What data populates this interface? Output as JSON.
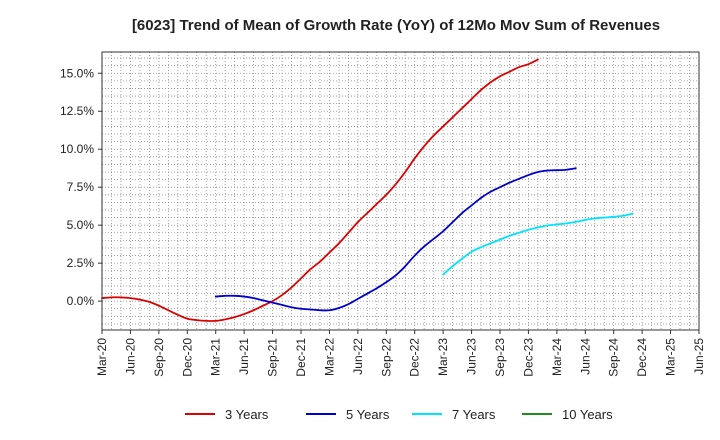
{
  "chart_data": {
    "type": "line",
    "title": "[6023]  Trend of Mean of Growth Rate (YoY) of 12Mo Mov Sum of Revenues",
    "xlabel": "",
    "ylabel": "",
    "grid": true,
    "legend_position": "bottom",
    "ylim": [
      -1.9,
      16.4
    ],
    "y_ticks": [
      0.0,
      2.5,
      5.0,
      7.5,
      10.0,
      12.5,
      15.0
    ],
    "y_tick_labels": [
      "0.0%",
      "2.5%",
      "5.0%",
      "7.5%",
      "10.0%",
      "12.5%",
      "15.0%"
    ],
    "x_tick_labels": [
      "Mar-20",
      "Jun-20",
      "Sep-20",
      "Dec-20",
      "Mar-21",
      "Jun-21",
      "Sep-21",
      "Dec-21",
      "Mar-22",
      "Jun-22",
      "Sep-22",
      "Dec-22",
      "Mar-23",
      "Jun-23",
      "Sep-23",
      "Dec-23",
      "Mar-24",
      "Jun-24",
      "Sep-24",
      "Dec-24",
      "Mar-25",
      "Jun-25"
    ],
    "series": [
      {
        "name": "3 Years",
        "color": "#dd0000",
        "start_index": 0,
        "values": [
          0.2,
          0.25,
          0.25,
          0.2,
          0.1,
          -0.05,
          -0.3,
          -0.6,
          -0.9,
          -1.15,
          -1.25,
          -1.3,
          -1.3,
          -1.2,
          -1.05,
          -0.85,
          -0.6,
          -0.3,
          0.0,
          0.4,
          0.9,
          1.5,
          2.1,
          2.6,
          3.2,
          3.8,
          4.5,
          5.2,
          5.8,
          6.4,
          7.0,
          7.7,
          8.5,
          9.4,
          10.2,
          10.9,
          11.5,
          12.1,
          12.7,
          13.3,
          13.9,
          14.4,
          14.8,
          15.1,
          15.4,
          15.6,
          15.9
        ]
      },
      {
        "name": "5 Years",
        "color": "#0000cc",
        "start_index": 12,
        "values": [
          0.3,
          0.35,
          0.35,
          0.3,
          0.2,
          0.05,
          -0.1,
          -0.25,
          -0.4,
          -0.5,
          -0.55,
          -0.6,
          -0.6,
          -0.45,
          -0.2,
          0.15,
          0.5,
          0.85,
          1.25,
          1.7,
          2.3,
          3.0,
          3.6,
          4.1,
          4.6,
          5.2,
          5.8,
          6.3,
          6.8,
          7.2,
          7.5,
          7.8,
          8.05,
          8.3,
          8.5,
          8.6,
          8.62,
          8.65,
          8.75
        ]
      },
      {
        "name": "7 Years",
        "color": "#00e5ff",
        "start_index": 36,
        "values": [
          1.75,
          2.3,
          2.8,
          3.25,
          3.55,
          3.8,
          4.05,
          4.3,
          4.5,
          4.7,
          4.85,
          4.98,
          5.05,
          5.12,
          5.22,
          5.35,
          5.45,
          5.5,
          5.55,
          5.62,
          5.75
        ]
      },
      {
        "name": "10 Years",
        "color": "#228b22",
        "start_index": 0,
        "values": []
      }
    ]
  }
}
